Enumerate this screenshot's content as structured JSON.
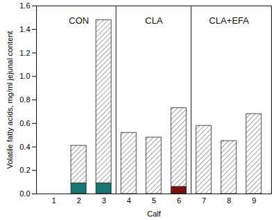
{
  "chart_data": {
    "type": "bar",
    "stacked": true,
    "x_label": "Calf",
    "y_label": "Volatile fatty acids, mg/ml jejunal content",
    "categories": [
      "1",
      "2",
      "3",
      "4",
      "5",
      "6",
      "7",
      "8",
      "9"
    ],
    "series": [
      {
        "values": [
          0,
          0.09,
          0.09,
          0,
          0,
          0.06,
          0,
          0,
          0
        ],
        "colors": [
          "#1a7474",
          "#1a7474",
          "#1a7474",
          "#1a7474",
          "#1a7474",
          "#7a0f14",
          "#7a0f14",
          "#7a0f14",
          "#7a0f14"
        ]
      },
      {
        "values": [
          0,
          0.32,
          1.39,
          0.52,
          0.48,
          0.67,
          0.58,
          0.45,
          0.68
        ],
        "color": "#808080",
        "marker": "hatch"
      }
    ],
    "groups": [
      {
        "label": "CON",
        "members": [
          "1",
          "2",
          "3"
        ]
      },
      {
        "label": "CLA",
        "members": [
          "4",
          "5",
          "6"
        ]
      },
      {
        "label": "CLA+EFA",
        "members": [
          "7",
          "8",
          "9"
        ]
      }
    ],
    "ylim": [
      0,
      1.6
    ],
    "yticks": [
      {
        "value": 0,
        "label": "0.0"
      },
      0.2,
      0.4,
      0.6,
      0.8,
      {
        "value": 1,
        "label": "1.0"
      },
      1.2,
      1.4,
      1.6
    ],
    "grid": false
  }
}
